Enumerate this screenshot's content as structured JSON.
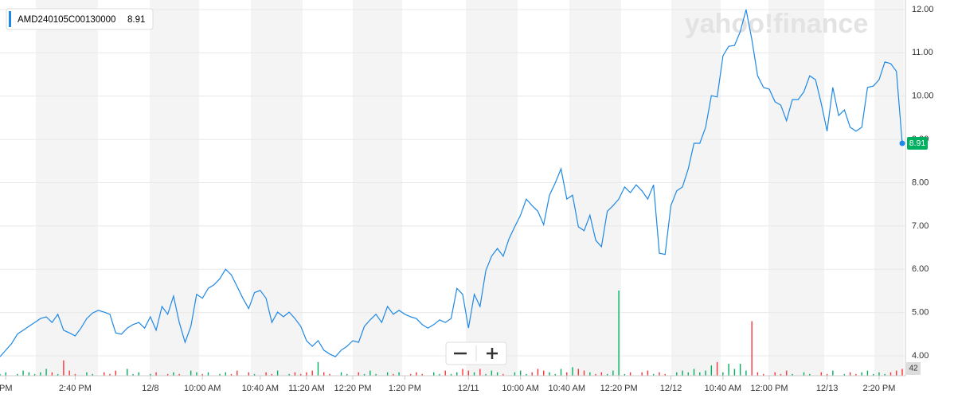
{
  "chart_data": {
    "type": "line",
    "watermark": "yahoo!finance",
    "series": [
      {
        "name": "AMD240105C00130000",
        "color": "#1e88e5",
        "values": [
          3.98,
          4.13,
          4.28,
          4.5,
          4.59,
          4.68,
          4.77,
          4.86,
          4.9,
          4.77,
          4.96,
          4.59,
          4.53,
          4.46,
          4.64,
          4.86,
          4.99,
          5.05,
          5.01,
          4.96,
          4.53,
          4.5,
          4.64,
          4.72,
          4.77,
          4.64,
          4.9,
          4.59,
          5.14,
          4.96,
          5.38,
          4.77,
          4.31,
          4.68,
          5.42,
          5.33,
          5.56,
          5.64,
          5.78,
          6.0,
          5.87,
          5.6,
          5.33,
          5.09,
          5.46,
          5.51,
          5.33,
          4.77,
          5.01,
          4.9,
          5.01,
          4.86,
          4.68,
          4.35,
          4.22,
          4.35,
          4.13,
          4.04,
          3.98,
          4.13,
          4.22,
          4.35,
          4.31,
          4.68,
          4.83,
          4.96,
          4.77,
          5.14,
          4.96,
          5.05,
          4.96,
          4.9,
          4.86,
          4.72,
          4.64,
          4.72,
          4.83,
          4.77,
          4.86,
          5.56,
          5.42,
          4.64,
          5.42,
          5.14,
          5.97,
          6.3,
          6.48,
          6.3,
          6.7,
          6.98,
          7.25,
          7.62,
          7.47,
          7.34,
          7.03,
          7.71,
          7.99,
          8.32,
          7.62,
          7.71,
          6.98,
          6.89,
          7.25,
          6.67,
          6.52,
          7.34,
          7.47,
          7.62,
          7.9,
          7.77,
          7.95,
          7.81,
          7.62,
          7.95,
          6.37,
          6.34,
          7.47,
          7.81,
          7.9,
          8.32,
          8.91,
          8.91,
          9.28,
          10.01,
          9.98,
          10.93,
          11.15,
          11.17,
          11.49,
          12.0,
          11.3,
          10.47,
          10.2,
          10.16,
          9.87,
          9.79,
          9.43,
          9.92,
          9.92,
          10.1,
          10.47,
          10.38,
          9.83,
          9.19,
          10.2,
          9.55,
          9.68,
          9.28,
          9.19,
          9.28,
          10.2,
          10.23,
          10.38,
          10.79,
          10.75,
          10.57,
          8.91
        ]
      }
    ],
    "volume": [
      1,
      2,
      0,
      1,
      3,
      2,
      1,
      2,
      4,
      2,
      1,
      9,
      3,
      1,
      0,
      2,
      1,
      0,
      2,
      1,
      3,
      0,
      4,
      1,
      2,
      0,
      1,
      2,
      0,
      1,
      2,
      1,
      0,
      3,
      2,
      1,
      2,
      0,
      1,
      2,
      1,
      3,
      0,
      2,
      1,
      0,
      2,
      1,
      3,
      0,
      1,
      2,
      1,
      2,
      3,
      8,
      2,
      1,
      0,
      2,
      1,
      0,
      2,
      1,
      3,
      1,
      0,
      2,
      1,
      2,
      0,
      1,
      2,
      1,
      0,
      2,
      1,
      3,
      1,
      2,
      4,
      3,
      2,
      4,
      1,
      3,
      2,
      1,
      0,
      2,
      3,
      1,
      2,
      4,
      3,
      2,
      1,
      4,
      2,
      5,
      4,
      3,
      2,
      1,
      2,
      1,
      3,
      50,
      1,
      2,
      0,
      2,
      3,
      1,
      2,
      1,
      0,
      2,
      3,
      2,
      4,
      2,
      3,
      6,
      8,
      2,
      7,
      4,
      7,
      3,
      32,
      2,
      1,
      0,
      2,
      1,
      3,
      1,
      0,
      2,
      1,
      0,
      2,
      1,
      3,
      0,
      1,
      2,
      1,
      2,
      3,
      1,
      2,
      1,
      2,
      3,
      4
    ],
    "volume_lim": [
      0,
      50
    ],
    "volume_label": 42,
    "up_color": "#00b061",
    "down_color": "#ff333a",
    "xlim": [
      0,
      156
    ],
    "xticks": [
      {
        "value": 1,
        "label": "PM"
      },
      {
        "value": 13,
        "label": "2:40 PM"
      },
      {
        "value": 26,
        "label": "12/8"
      },
      {
        "value": 35,
        "label": "10:00 AM"
      },
      {
        "value": 45,
        "label": "10:40 AM"
      },
      {
        "value": 53,
        "label": "11:20 AM"
      },
      {
        "value": 61,
        "label": "12:20 PM"
      },
      {
        "value": 70,
        "label": "1:20 PM"
      },
      {
        "value": 81,
        "label": "12/11"
      },
      {
        "value": 90,
        "label": "10:00 AM"
      },
      {
        "value": 98,
        "label": "10:40 AM"
      },
      {
        "value": 107,
        "label": "12:20 PM"
      },
      {
        "value": 116,
        "label": "12/12"
      },
      {
        "value": 125,
        "label": "10:40 AM"
      },
      {
        "value": 133,
        "label": "12:00 PM"
      },
      {
        "value": 143,
        "label": "12/13"
      },
      {
        "value": 152,
        "label": "2:20 PM"
      }
    ],
    "ylim": [
      3.54,
      12.22
    ],
    "yticks": [
      {
        "value": 4,
        "label": "4.00"
      },
      {
        "value": 5,
        "label": "5.00"
      },
      {
        "value": 6,
        "label": "6.00"
      },
      {
        "value": 7,
        "label": "7.00"
      },
      {
        "value": 8,
        "label": "8.00"
      },
      {
        "value": 9,
        "label": "9.00"
      },
      {
        "value": 10,
        "label": "10.00"
      },
      {
        "value": 11,
        "label": "11.00"
      },
      {
        "value": 12,
        "label": "12.00"
      }
    ],
    "grid": true
  }
}
